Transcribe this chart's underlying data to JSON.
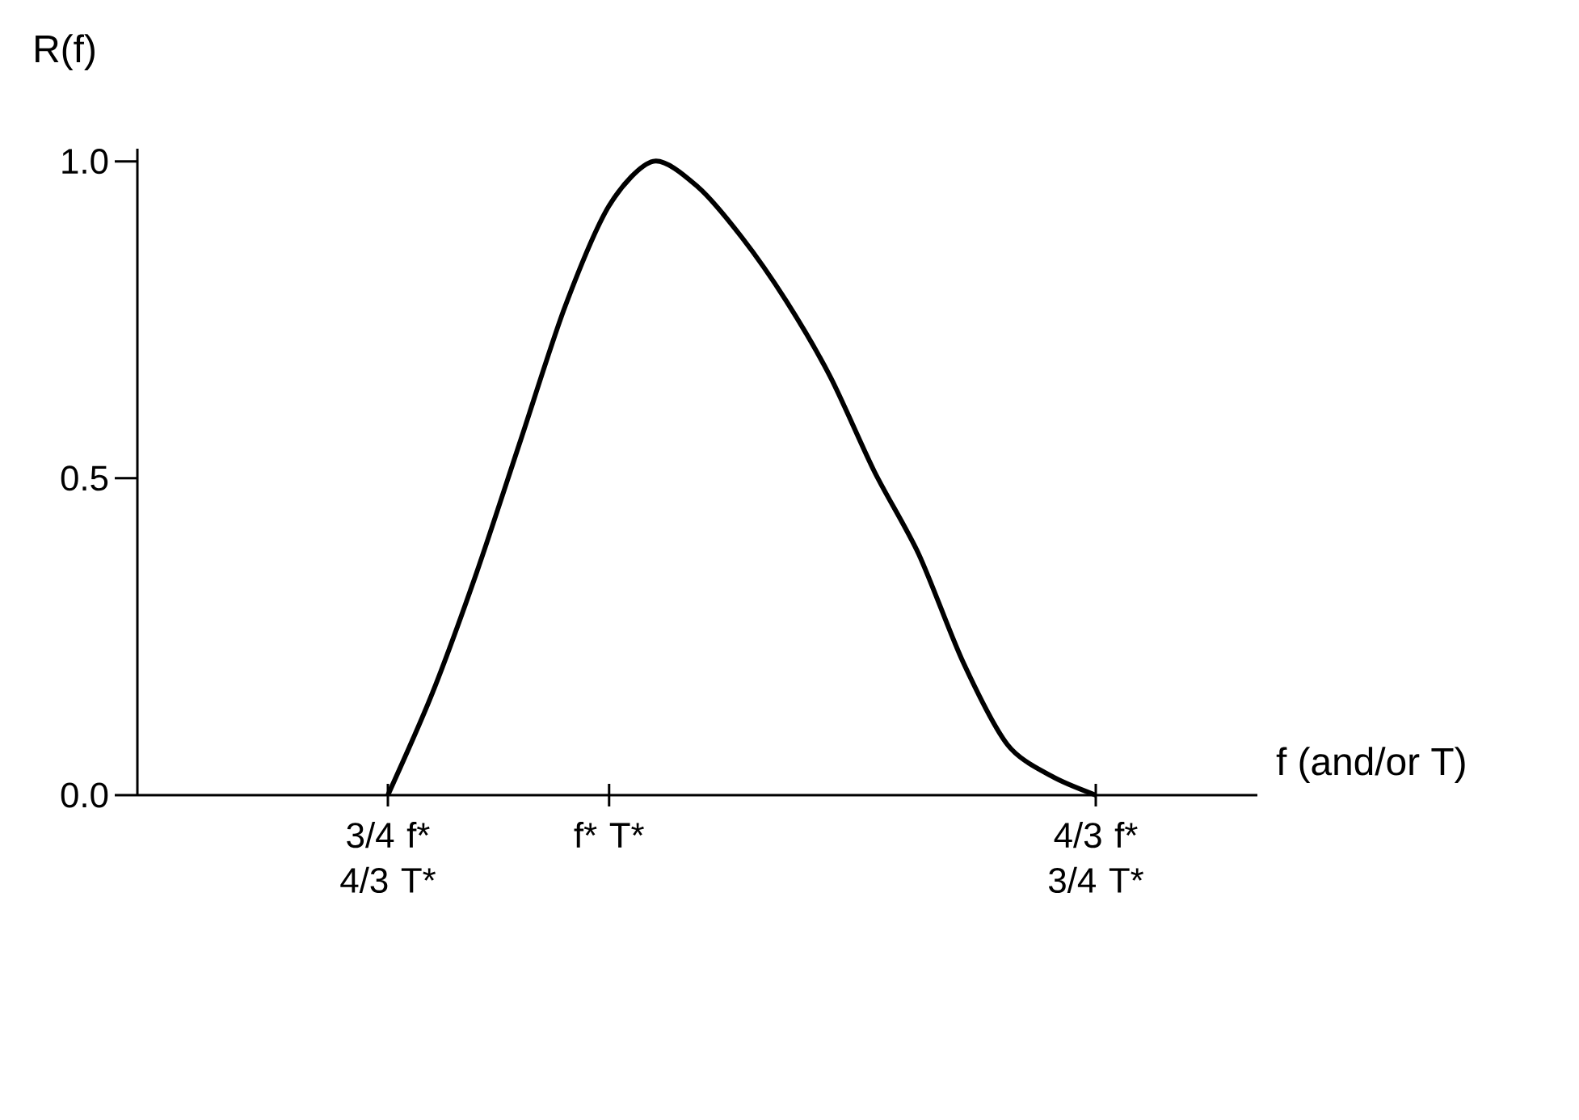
{
  "chart_data": {
    "type": "line",
    "xlabel": "f (and/or T)",
    "ylabel": "R(f)",
    "categories": [
      "3/4 f* 4/3 T*",
      null,
      null,
      null,
      null,
      "f* T*",
      null,
      null,
      null,
      null,
      null,
      null,
      null,
      null,
      null,
      null,
      "4/3 f* 3/4 T*"
    ],
    "series": [
      {
        "color": "#000000",
        "values": [
          0,
          0.16,
          0.35,
          0.56,
          0.77,
          0.93,
          1.0,
          0.96,
          0.88,
          0.78,
          0.66,
          0.51,
          0.38,
          0.21,
          0.08,
          0.03,
          0
        ]
      }
    ],
    "ylim": [
      0,
      1.02
    ],
    "yticks": [
      {
        "value": 0,
        "label": "0.0"
      },
      {
        "value": 0.5,
        "label": "0.5"
      },
      {
        "value": 1.0,
        "label": "1.0"
      }
    ],
    "grid": false
  }
}
